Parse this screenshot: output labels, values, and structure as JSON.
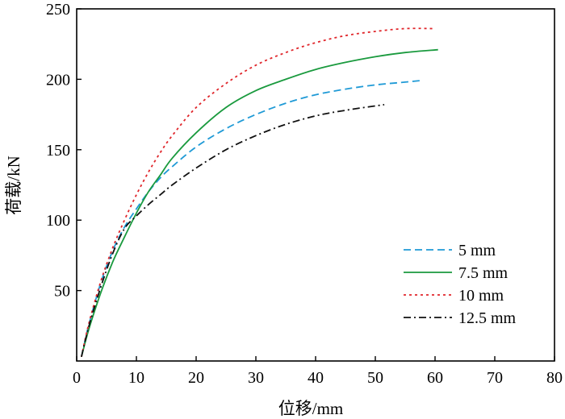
{
  "chart_data": {
    "type": "line",
    "xlabel": "位移/mm",
    "ylabel": "荷载/kN",
    "xlim": [
      0,
      80
    ],
    "ylim": [
      0,
      250
    ],
    "x_ticks": [
      "0",
      "10",
      "20",
      "30",
      "40",
      "50",
      "60",
      "70",
      "80"
    ],
    "y_ticks": [
      "50",
      "100",
      "150",
      "200",
      "250"
    ],
    "legend_position": "bottom-right",
    "grid": false,
    "series": [
      {
        "name": "5 mm",
        "color": "#1f9ad6",
        "dash": "dashed",
        "x": [
          0.8,
          2,
          4,
          6,
          8,
          10,
          12,
          14,
          16,
          20,
          25,
          30,
          35,
          40,
          45,
          50,
          55,
          57.5
        ],
        "y": [
          3,
          25,
          55,
          78,
          95,
          108,
          120,
          130,
          138,
          152,
          165,
          175,
          183,
          189,
          193,
          196,
          198,
          199
        ]
      },
      {
        "name": "7.5 mm",
        "color": "#1a9a3e",
        "dash": "solid",
        "x": [
          0.8,
          2,
          4,
          6,
          8,
          10,
          12,
          14,
          16,
          20,
          25,
          30,
          35,
          40,
          45,
          50,
          55,
          60.5
        ],
        "y": [
          3,
          22,
          48,
          70,
          88,
          105,
          120,
          132,
          144,
          162,
          180,
          192,
          200,
          207,
          212,
          216,
          219,
          221
        ]
      },
      {
        "name": "10 mm",
        "color": "#e0262b",
        "dash": "dotted",
        "x": [
          0.8,
          2,
          4,
          6,
          8,
          10,
          12,
          14,
          16,
          20,
          25,
          30,
          35,
          40,
          45,
          50,
          55,
          60
        ],
        "y": [
          3,
          26,
          56,
          80,
          100,
          118,
          134,
          148,
          160,
          180,
          197,
          210,
          219,
          226,
          231,
          234,
          236,
          236
        ]
      },
      {
        "name": "12.5 mm",
        "color": "#111111",
        "dash": "dash-dot",
        "x": [
          0.8,
          2,
          4,
          6,
          8,
          10,
          12,
          14,
          16,
          20,
          25,
          30,
          35,
          40,
          45,
          51.5
        ],
        "y": [
          3,
          24,
          52,
          76,
          94,
          103,
          111,
          118,
          125,
          137,
          150,
          160,
          168,
          174,
          178,
          182
        ]
      }
    ]
  }
}
